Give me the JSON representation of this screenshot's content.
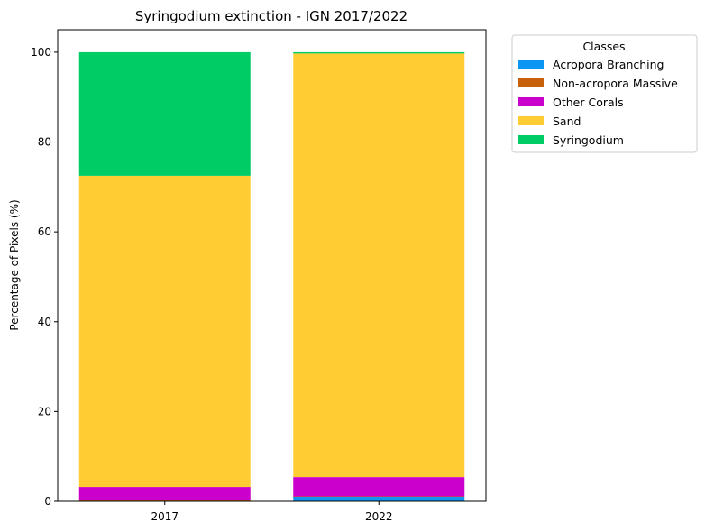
{
  "chart_data": {
    "type": "bar",
    "stacked": true,
    "title": "Syringodium extinction - IGN 2017/2022",
    "xlabel": "",
    "ylabel": "Percentage of Pixels (%)",
    "ylim": [
      0,
      105
    ],
    "yticks": [
      0,
      20,
      40,
      60,
      80,
      100
    ],
    "grid": false,
    "categories": [
      "2017",
      "2022"
    ],
    "legend": {
      "title": "Classes",
      "placement": "outside-top-right"
    },
    "series": [
      {
        "name": "Acropora Branching",
        "color": "#0C95F2",
        "values": [
          0.0,
          1.0
        ]
      },
      {
        "name": "Non-acropora Massive",
        "color": "#C8620A",
        "values": [
          0.3,
          0.1
        ]
      },
      {
        "name": "Other Corals",
        "color": "#CC00CC",
        "values": [
          2.9,
          4.3
        ]
      },
      {
        "name": "Sand",
        "color": "#FFCC33",
        "values": [
          69.3,
          94.3
        ]
      },
      {
        "name": "Syringodium",
        "color": "#00CC66",
        "values": [
          27.5,
          0.3
        ]
      }
    ]
  }
}
